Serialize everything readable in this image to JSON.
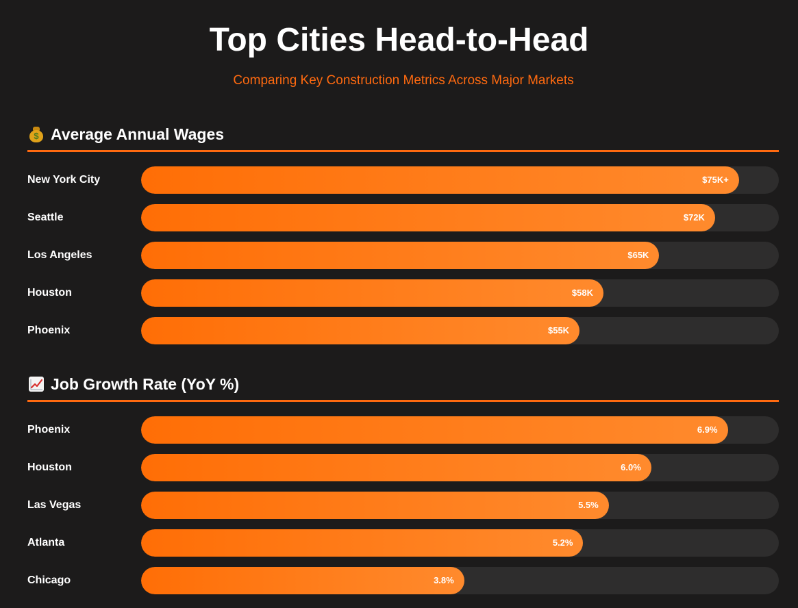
{
  "header": {
    "title": "Top Cities Head-to-Head",
    "subtitle": "Comparing Key Construction Metrics Across Major Markets"
  },
  "colors": {
    "accent": "#ff6a10",
    "bar_start": "#ff6e06",
    "bar_end": "#ff8a2d",
    "track": "#2e2d2d",
    "background": "#1c1b1b"
  },
  "chart_data": [
    {
      "type": "bar",
      "orientation": "horizontal",
      "title": "Average Annual Wages",
      "icon": "money-bag-icon",
      "xlabel": "",
      "ylabel": "",
      "xlim": [
        0,
        80
      ],
      "grid": false,
      "categories": [
        "New York City",
        "Seattle",
        "Los Angeles",
        "Houston",
        "Phoenix"
      ],
      "values": [
        75,
        72,
        65,
        58,
        55
      ],
      "value_labels": [
        "$75K+",
        "$72K",
        "$65K",
        "$58K",
        "$55K"
      ]
    },
    {
      "type": "bar",
      "orientation": "horizontal",
      "title": "Job Growth Rate (YoY %)",
      "icon": "chart-increasing-icon",
      "xlabel": "",
      "ylabel": "",
      "xlim": [
        0,
        7.5
      ],
      "grid": false,
      "categories": [
        "Phoenix",
        "Houston",
        "Las Vegas",
        "Atlanta",
        "Chicago"
      ],
      "values": [
        6.9,
        6.0,
        5.5,
        5.2,
        3.8
      ],
      "value_labels": [
        "6.9%",
        "6.0%",
        "5.5%",
        "5.2%",
        "3.8%"
      ]
    }
  ]
}
